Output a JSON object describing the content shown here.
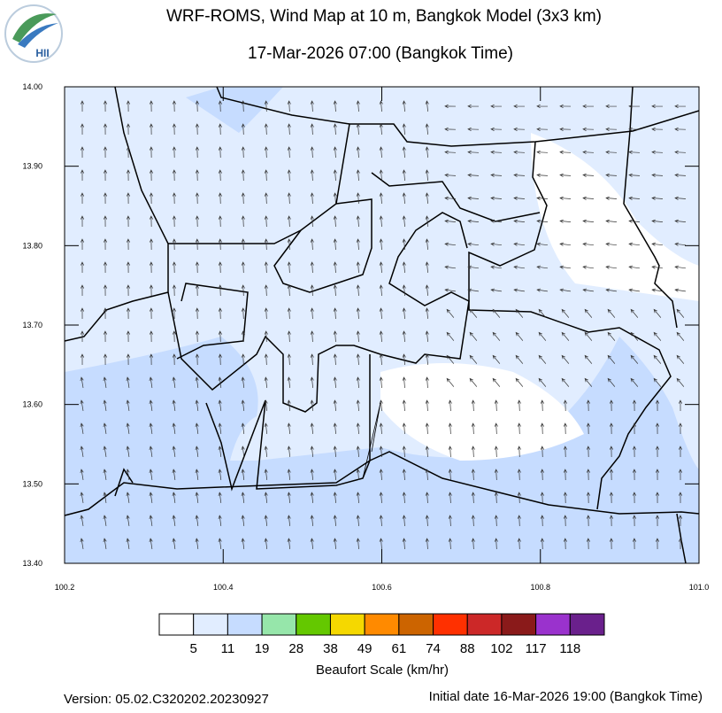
{
  "logo": {
    "text": "HII"
  },
  "map": {
    "title": "WRF-ROMS, Wind Map at 10 m, Bangkok Model (3x3 km)",
    "subtitle": "17-Mar-2026 07:00 (Bangkok Time)",
    "xlim": [
      100.2,
      101.0
    ],
    "ylim": [
      13.4,
      14.0
    ],
    "xticks": [
      100.2,
      100.4,
      100.6,
      100.8,
      {
        "value": 101.0,
        "label": "101.0"
      }
    ],
    "yticks": [
      {
        "value": 13.4,
        "label": "13.40"
      },
      {
        "value": 13.5,
        "label": "13.50"
      },
      {
        "value": 13.6,
        "label": "13.60"
      },
      {
        "value": 13.7,
        "label": "13.70"
      },
      {
        "value": 13.8,
        "label": "13.80"
      },
      {
        "value": 13.9,
        "label": "13.90"
      },
      {
        "value": 14.0,
        "label": "14.00"
      }
    ]
  },
  "colorbar": {
    "title": "Beaufort Scale (km/hr)",
    "colors": [
      "#ffffff",
      "#e1edff",
      "#c6dcff",
      "#96e6aa",
      "#64c800",
      "#f5d800",
      "#ff8a00",
      "#cc6400",
      "#ff3000",
      "#cc2828",
      "#8a1a1a",
      "#9a32cd",
      "#6a208c"
    ],
    "labels": [
      5,
      11,
      19,
      28,
      38,
      49,
      61,
      74,
      88,
      102,
      117,
      118
    ]
  },
  "footer": {
    "version": "Version: 05.02.C320202.20230927",
    "initial": "Initial date 16-Mar-2026 19:00 (Bangkok Time)"
  }
}
